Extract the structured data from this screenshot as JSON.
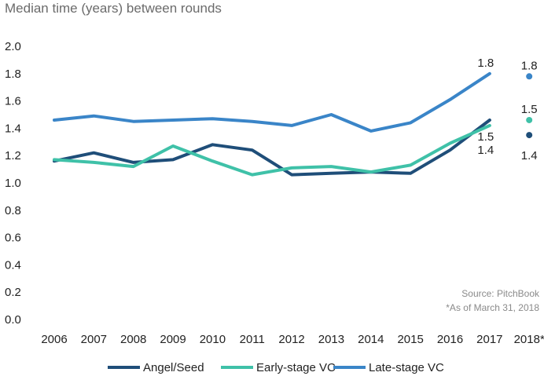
{
  "chart_data": {
    "type": "line",
    "title": "Median time (years) between rounds",
    "xlabel": "",
    "ylabel": "",
    "categories": [
      "2006",
      "2007",
      "2008",
      "2009",
      "2010",
      "2011",
      "2012",
      "2013",
      "2014",
      "2015",
      "2016",
      "2017",
      "2018*"
    ],
    "y_ticks": [
      "0.0",
      "0.2",
      "0.4",
      "0.6",
      "0.8",
      "1.0",
      "1.2",
      "1.4",
      "1.6",
      "1.8",
      "2.0"
    ],
    "ylim": [
      0,
      2.0
    ],
    "grid": false,
    "legend_position": "bottom",
    "series": [
      {
        "name": "Angel/Seed",
        "color": "#1f4e79",
        "values": [
          1.16,
          1.22,
          1.15,
          1.17,
          1.28,
          1.24,
          1.06,
          1.07,
          1.08,
          1.07,
          1.24,
          1.46,
          1.35
        ],
        "labels": [
          {
            "category": "2017",
            "value": 1.46,
            "text": "1.5"
          },
          {
            "category": "2018*",
            "value": 1.35,
            "text": "1.4"
          }
        ]
      },
      {
        "name": "Early-stage VC",
        "color": "#3fc1a8",
        "values": [
          1.17,
          1.15,
          1.12,
          1.27,
          1.16,
          1.06,
          1.11,
          1.12,
          1.08,
          1.13,
          1.29,
          1.42,
          1.46
        ],
        "labels": [
          {
            "category": "2017",
            "value": 1.42,
            "text": "1.4"
          },
          {
            "category": "2018*",
            "value": 1.46,
            "text": "1.5"
          }
        ]
      },
      {
        "name": "Late-stage VC",
        "color": "#3a85c8",
        "values": [
          1.46,
          1.49,
          1.45,
          1.46,
          1.47,
          1.45,
          1.42,
          1.5,
          1.38,
          1.44,
          1.61,
          1.8,
          1.78
        ],
        "labels": [
          {
            "category": "2017",
            "value": 1.8,
            "text": "1.8"
          },
          {
            "category": "2018*",
            "value": 1.78,
            "text": "1.8"
          }
        ]
      }
    ],
    "notes": [
      "Source: PitchBook",
      "*As of March 31, 2018"
    ]
  }
}
